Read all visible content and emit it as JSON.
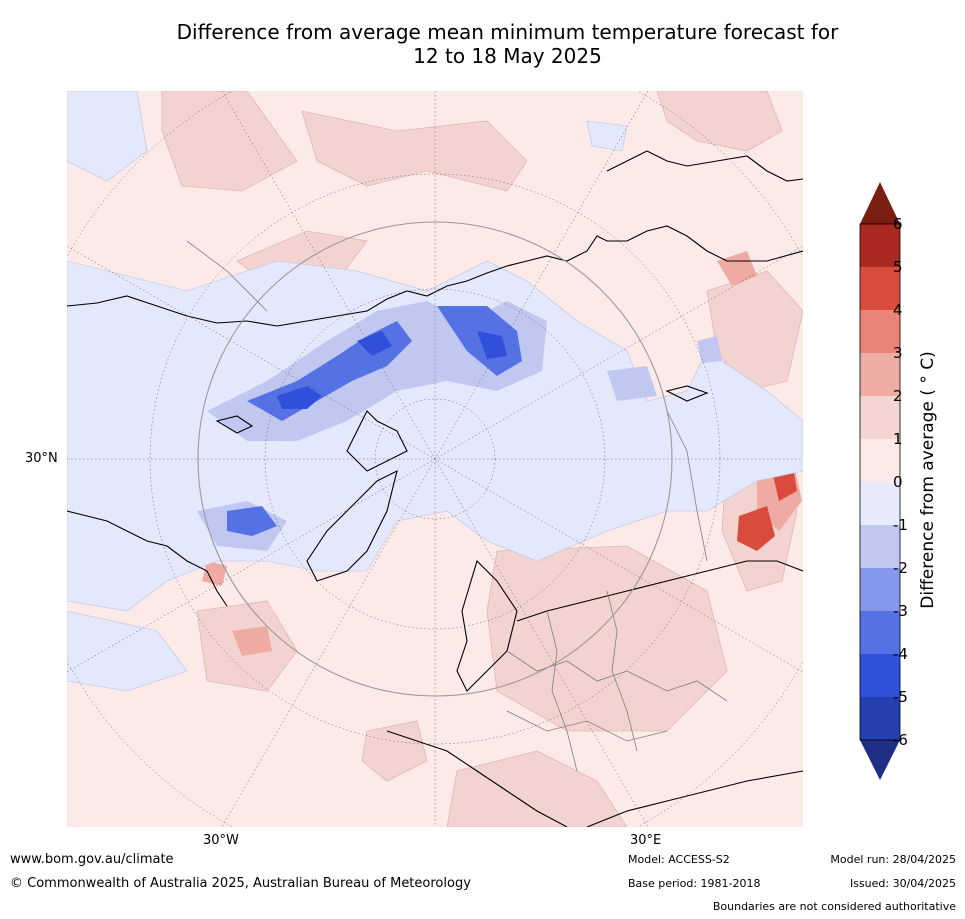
{
  "title": {
    "line1": "Difference from average mean minimum temperature forecast for",
    "line2": "12 to 18 May 2025"
  },
  "map": {
    "projection": "north polar stereographic",
    "lon_labels": [
      "30°W",
      "30°E"
    ],
    "lat_labels": [
      "30°N"
    ],
    "colors": {
      "ocean_neutral": "#fbeae8",
      "land_line": "#000000",
      "border_line": "#808080",
      "graticule": "#555555"
    }
  },
  "colorbar": {
    "label": "Difference from average ( ° C)",
    "ticks": [
      "6",
      "5",
      "4",
      "3",
      "2",
      "1",
      "0",
      "-1",
      "-2",
      "-3",
      "-4",
      "-5",
      "-6"
    ],
    "colors": [
      "#7a1e14",
      "#aa2a22",
      "#d94c3d",
      "#e88478",
      "#efada6",
      "#f5d5d1",
      "#fbeae8",
      "#e8ebfb",
      "#c0c8f2",
      "#8598ea",
      "#5472e3",
      "#3050db",
      "#263fae",
      "#1f2f86"
    ]
  },
  "footer": {
    "website": "www.bom.gov.au/climate",
    "copyright": "© Commonwealth of Australia 2025, Australian Bureau of Meteorology",
    "model": "Model: ACCESS-S2",
    "base_period": "Base period: 1981-2018",
    "model_run": "Model run: 28/04/2025",
    "issued": "Issued: 30/04/2025",
    "disclaimer": "Boundaries are not considered authoritative"
  }
}
